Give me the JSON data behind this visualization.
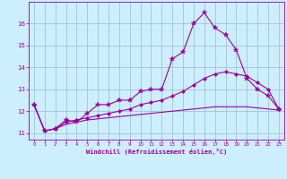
{
  "xlabel": "Windchill (Refroidissement éolien,°C)",
  "background_color": "#cceeff",
  "line_color": "#990099",
  "grid_color": "#99bbcc",
  "xlim": [
    -0.5,
    23.5
  ],
  "ylim": [
    10.7,
    17.0
  ],
  "xticks": [
    0,
    1,
    2,
    3,
    4,
    5,
    6,
    7,
    8,
    9,
    10,
    11,
    12,
    13,
    14,
    15,
    16,
    17,
    18,
    19,
    20,
    21,
    22,
    23
  ],
  "yticks": [
    11,
    12,
    13,
    14,
    15,
    16
  ],
  "line1_x": [
    0,
    1,
    2,
    3,
    4,
    5,
    6,
    7,
    8,
    9,
    10,
    11,
    12,
    13,
    14,
    15,
    16,
    17,
    18,
    19,
    20,
    21,
    22,
    23
  ],
  "line1_y": [
    12.3,
    11.1,
    11.2,
    11.6,
    11.5,
    11.9,
    12.3,
    12.3,
    12.5,
    12.5,
    12.9,
    13.0,
    13.0,
    14.4,
    14.7,
    16.0,
    16.5,
    15.8,
    15.5,
    14.8,
    13.5,
    13.0,
    12.7,
    12.1
  ],
  "line2_x": [
    0,
    1,
    2,
    3,
    4,
    5,
    6,
    7,
    8,
    9,
    10,
    11,
    12,
    13,
    14,
    15,
    16,
    17,
    18,
    19,
    20,
    21,
    22,
    23
  ],
  "line2_y": [
    12.3,
    11.1,
    11.2,
    11.5,
    11.6,
    11.7,
    11.8,
    11.9,
    12.0,
    12.1,
    12.3,
    12.4,
    12.5,
    12.7,
    12.9,
    13.2,
    13.5,
    13.7,
    13.8,
    13.7,
    13.6,
    13.3,
    13.0,
    12.1
  ],
  "line3_x": [
    0,
    1,
    2,
    3,
    4,
    5,
    6,
    7,
    8,
    9,
    10,
    11,
    12,
    13,
    14,
    15,
    16,
    17,
    18,
    19,
    20,
    21,
    22,
    23
  ],
  "line3_y": [
    12.3,
    11.1,
    11.2,
    11.4,
    11.5,
    11.6,
    11.65,
    11.7,
    11.75,
    11.8,
    11.85,
    11.9,
    11.95,
    12.0,
    12.05,
    12.1,
    12.15,
    12.2,
    12.2,
    12.2,
    12.2,
    12.15,
    12.1,
    12.05
  ]
}
